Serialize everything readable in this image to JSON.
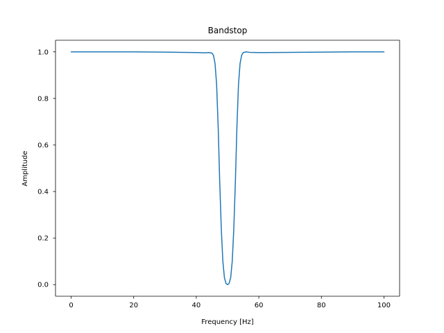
{
  "chart_data": {
    "type": "line",
    "title": "Bandstop",
    "xlabel": "Frequency [Hz]",
    "ylabel": "Amplitude",
    "xlim": [
      -5,
      105
    ],
    "ylim": [
      -0.05,
      1.05
    ],
    "x_ticks": [
      0,
      20,
      40,
      60,
      80,
      100
    ],
    "y_ticks": [
      0.0,
      0.2,
      0.4,
      0.6,
      0.8,
      1.0
    ],
    "x_tick_labels": [
      "0",
      "20",
      "40",
      "60",
      "80",
      "100"
    ],
    "y_tick_labels": [
      "0.0",
      "0.2",
      "0.4",
      "0.6",
      "0.8",
      "1.0"
    ],
    "grid": false,
    "series": [
      {
        "color": "#1f77b4",
        "x": [
          0,
          10,
          20,
          30,
          40,
          43,
          44,
          45,
          45.5,
          46,
          46.5,
          47,
          47.5,
          48,
          48.5,
          49,
          49.5,
          50,
          50.5,
          51,
          51.5,
          52,
          52.5,
          53,
          53.5,
          54,
          54.5,
          55,
          56,
          57,
          60,
          70,
          80,
          90,
          100
        ],
        "y": [
          1.0,
          1.0,
          1.0,
          0.999,
          0.997,
          0.996,
          0.997,
          0.995,
          0.985,
          0.95,
          0.86,
          0.68,
          0.44,
          0.24,
          0.1,
          0.03,
          0.005,
          0.0,
          0.005,
          0.03,
          0.1,
          0.24,
          0.44,
          0.68,
          0.86,
          0.95,
          0.985,
          0.997,
          1.0,
          0.998,
          0.997,
          0.998,
          0.999,
          1.0,
          1.0
        ]
      }
    ]
  }
}
